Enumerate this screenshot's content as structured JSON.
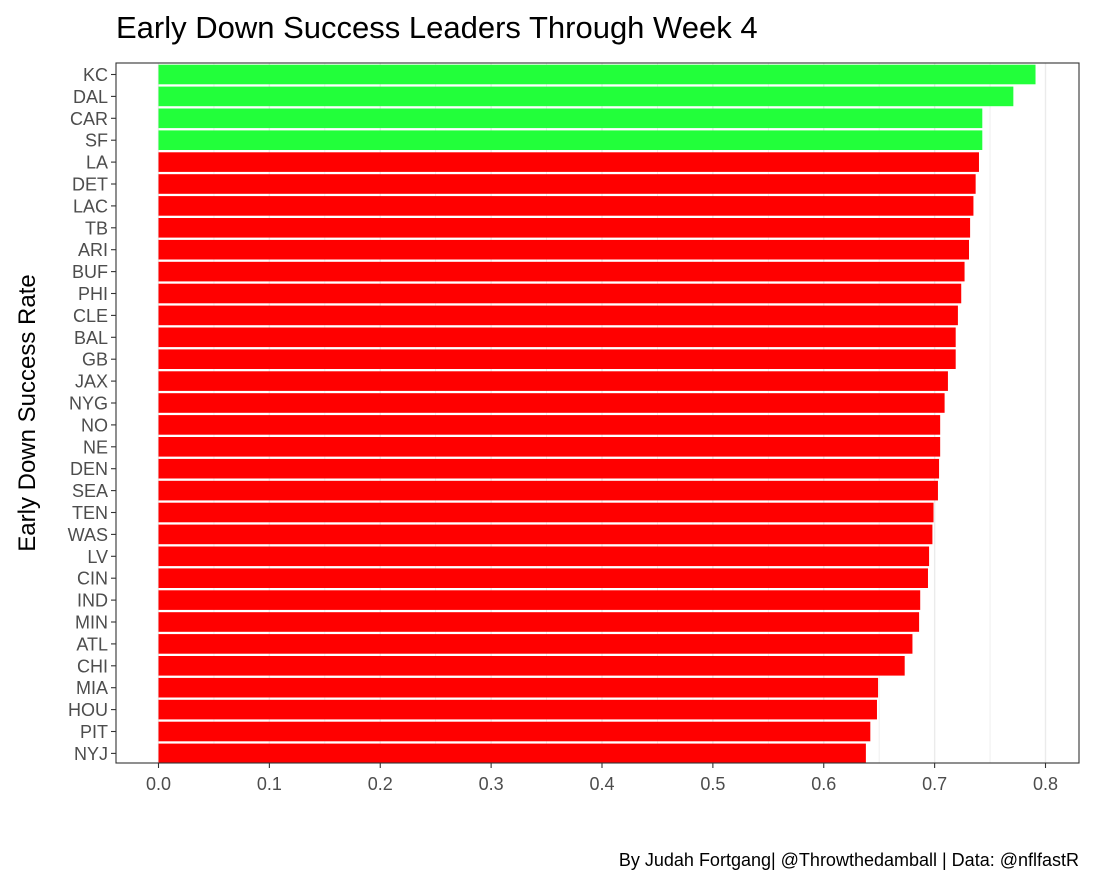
{
  "chart_data": {
    "type": "bar",
    "orientation": "horizontal",
    "title": "Early Down Success Leaders Through Week 4",
    "ylabel": "Early Down Success Rate",
    "xlabel": "",
    "caption": "By Judah Fortgang| @Throwthedamball | Data: @nflfastR",
    "xlim": [
      0,
      0.8
    ],
    "x_ticks": [
      "0.0",
      "0.1",
      "0.2",
      "0.3",
      "0.4",
      "0.5",
      "0.6",
      "0.7",
      "0.8"
    ],
    "grid": true,
    "legend": "none",
    "colors": {
      "highlight": "#22ff3a",
      "base": "#ff0000"
    },
    "categories": [
      "KC",
      "DAL",
      "CAR",
      "SF",
      "LA",
      "DET",
      "LAC",
      "TB",
      "ARI",
      "BUF",
      "PHI",
      "CLE",
      "BAL",
      "GB",
      "JAX",
      "NYG",
      "NO",
      "NE",
      "DEN",
      "SEA",
      "TEN",
      "WAS",
      "LV",
      "CIN",
      "IND",
      "MIN",
      "ATL",
      "CHI",
      "MIA",
      "HOU",
      "PIT",
      "NYJ"
    ],
    "values": [
      0.791,
      0.771,
      0.743,
      0.743,
      0.74,
      0.737,
      0.735,
      0.732,
      0.731,
      0.727,
      0.724,
      0.721,
      0.719,
      0.719,
      0.712,
      0.709,
      0.705,
      0.705,
      0.704,
      0.703,
      0.699,
      0.698,
      0.695,
      0.694,
      0.687,
      0.686,
      0.68,
      0.673,
      0.649,
      0.648,
      0.642,
      0.638
    ],
    "highlighted": [
      "KC",
      "DAL",
      "CAR",
      "SF"
    ]
  }
}
